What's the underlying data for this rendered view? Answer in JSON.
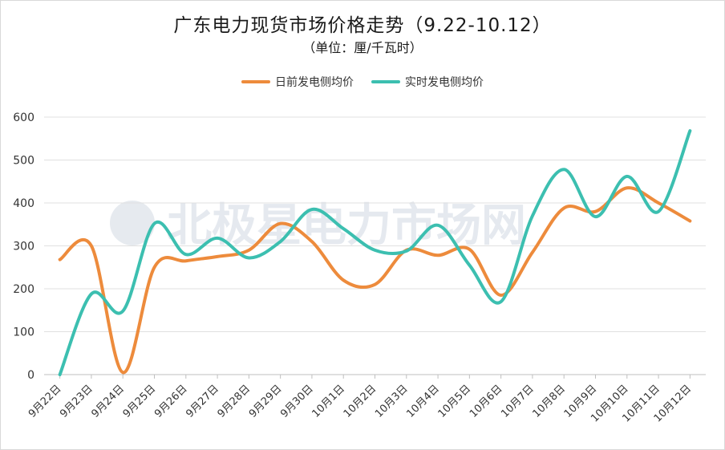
{
  "chart_data": {
    "type": "line",
    "title": "广东电力现货市场价格走势（9.22-10.12）",
    "subtitle": "（单位：厘/千瓦时）",
    "categories": [
      "9月22日",
      "9月23日",
      "9月24日",
      "9月25日",
      "9月26日",
      "9月27日",
      "9月28日",
      "9月29日",
      "9月30日",
      "10月1日",
      "10月2日",
      "10月3日",
      "10月4日",
      "10月5日",
      "10月6日",
      "10月7日",
      "10月8日",
      "10月9日",
      "10月10日",
      "10月11日",
      "10月12日"
    ],
    "series": [
      {
        "name": "日前发电侧均价",
        "color": "#ED8B3C",
        "values": [
          268,
          300,
          5,
          250,
          265,
          275,
          290,
          352,
          310,
          220,
          210,
          290,
          278,
          292,
          185,
          285,
          388,
          380,
          435,
          400,
          358
        ]
      },
      {
        "name": "实时发电侧均价",
        "color": "#3CBFB0",
        "values": [
          0,
          188,
          148,
          352,
          280,
          318,
          272,
          310,
          385,
          340,
          290,
          288,
          348,
          255,
          170,
          370,
          478,
          368,
          462,
          380,
          568
        ]
      }
    ],
    "ylim": [
      0,
      600
    ],
    "yticks": [
      0,
      100,
      200,
      300,
      400,
      500,
      600
    ],
    "grid": true,
    "legend": "top-center"
  },
  "watermark": "北极星电力市场网"
}
